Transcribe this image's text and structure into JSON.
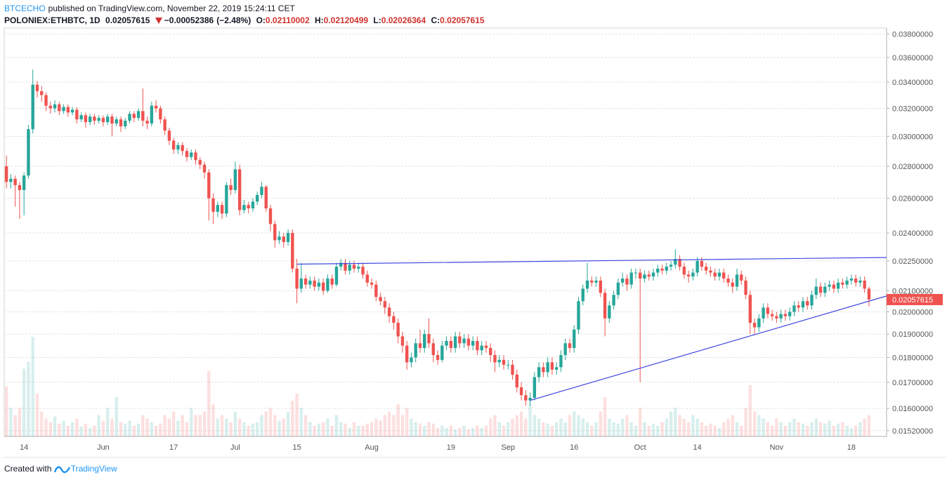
{
  "header": {
    "author": "BTCECHO",
    "published": "published on TradingView.com, November 22, 2019 15:24:11 CET",
    "symbol": "POLONIEX:ETHBTC, 1D",
    "change": {
      "value": -0.00052386,
      "label": "−0.00052386"
    },
    "change_percent": {
      "value": -2.48,
      "label": "(−2.48%)"
    },
    "ohlc_labels": [
      "O:",
      "H:",
      "L:",
      "C:"
    ]
  },
  "footer": {
    "created": "Created with",
    "brand": "TradingView"
  },
  "chart_data": {
    "type": "candlestick",
    "log": true,
    "grid": true,
    "up_color": "#26a69a",
    "down_color": "#ef5350",
    "line_color": "#3f48e0",
    "x": [
      "May 10",
      "May 11",
      "May 12",
      "May 13",
      "May 14",
      "May 15",
      "May 16",
      "May 17",
      "May 18",
      "May 19",
      "May 20",
      "May 21",
      "May 22",
      "May 23",
      "May 24",
      "May 25",
      "May 26",
      "May 27",
      "May 28",
      "May 29",
      "May 30",
      "May 31",
      "Jun 1",
      "Jun 2",
      "Jun 3",
      "Jun 4",
      "Jun 5",
      "Jun 6",
      "Jun 7",
      "Jun 8",
      "Jun 9",
      "Jun 10",
      "Jun 11",
      "Jun 12",
      "Jun 13",
      "Jun 14",
      "Jun 15",
      "Jun 16",
      "Jun 17",
      "Jun 18",
      "Jun 19",
      "Jun 20",
      "Jun 21",
      "Jun 22",
      "Jun 23",
      "Jun 24",
      "Jun 25",
      "Jun 26",
      "Jun 27",
      "Jun 28",
      "Jun 29",
      "Jun 30",
      "Jul 1",
      "Jul 2",
      "Jul 3",
      "Jul 4",
      "Jul 5",
      "Jul 6",
      "Jul 7",
      "Jul 8",
      "Jul 9",
      "Jul 10",
      "Jul 11",
      "Jul 12",
      "Jul 13",
      "Jul 14",
      "Jul 15",
      "Jul 16",
      "Jul 17",
      "Jul 18",
      "Jul 19",
      "Jul 20",
      "Jul 21",
      "Jul 22",
      "Jul 23",
      "Jul 24",
      "Jul 25",
      "Jul 26",
      "Jul 27",
      "Jul 28",
      "Jul 29",
      "Jul 30",
      "Jul 31",
      "Aug 1",
      "Aug 2",
      "Aug 3",
      "Aug 4",
      "Aug 5",
      "Aug 6",
      "Aug 7",
      "Aug 8",
      "Aug 9",
      "Aug 10",
      "Aug 11",
      "Aug 12",
      "Aug 13",
      "Aug 14",
      "Aug 15",
      "Aug 16",
      "Aug 17",
      "Aug 18",
      "Aug 19",
      "Aug 20",
      "Aug 21",
      "Aug 22",
      "Aug 23",
      "Aug 24",
      "Aug 25",
      "Aug 26",
      "Aug 27",
      "Aug 28",
      "Aug 29",
      "Aug 30",
      "Aug 31",
      "Sep 1",
      "Sep 2",
      "Sep 3",
      "Sep 4",
      "Sep 5",
      "Sep 6",
      "Sep 7",
      "Sep 8",
      "Sep 9",
      "Sep 10",
      "Sep 11",
      "Sep 12",
      "Sep 13",
      "Sep 14",
      "Sep 15",
      "Sep 16",
      "Sep 17",
      "Sep 18",
      "Sep 19",
      "Sep 20",
      "Sep 21",
      "Sep 22",
      "Sep 23",
      "Sep 24",
      "Sep 25",
      "Sep 26",
      "Sep 27",
      "Sep 28",
      "Sep 29",
      "Sep 30",
      "Oct 1",
      "Oct 2",
      "Oct 3",
      "Oct 4",
      "Oct 5",
      "Oct 6",
      "Oct 7",
      "Oct 8",
      "Oct 9",
      "Oct 10",
      "Oct 11",
      "Oct 12",
      "Oct 13",
      "Oct 14",
      "Oct 15",
      "Oct 16",
      "Oct 17",
      "Oct 18",
      "Oct 19",
      "Oct 20",
      "Oct 21",
      "Oct 22",
      "Oct 23",
      "Oct 24",
      "Oct 25",
      "Oct 26",
      "Oct 27",
      "Oct 28",
      "Oct 29",
      "Oct 30",
      "Oct 31",
      "Nov 1",
      "Nov 2",
      "Nov 3",
      "Nov 4",
      "Nov 5",
      "Nov 6",
      "Nov 7",
      "Nov 8",
      "Nov 9",
      "Nov 10",
      "Nov 11",
      "Nov 12",
      "Nov 13",
      "Nov 14",
      "Nov 15",
      "Nov 16",
      "Nov 17",
      "Nov 18",
      "Nov 19",
      "Nov 20",
      "Nov 21",
      "Nov 22"
    ],
    "open": [
      0.028,
      0.027,
      0.0272,
      0.0268,
      0.0265,
      0.0274,
      0.0305,
      0.0338,
      0.0333,
      0.033,
      0.0322,
      0.032,
      0.0323,
      0.0318,
      0.0321,
      0.0317,
      0.0319,
      0.0312,
      0.0315,
      0.031,
      0.0314,
      0.0311,
      0.0313,
      0.031,
      0.0314,
      0.0309,
      0.0312,
      0.0307,
      0.0311,
      0.0316,
      0.0313,
      0.0318,
      0.0311,
      0.0309,
      0.0322,
      0.032,
      0.0312,
      0.0304,
      0.0297,
      0.0291,
      0.0294,
      0.029,
      0.0286,
      0.0289,
      0.0284,
      0.0281,
      0.0276,
      0.026,
      0.0252,
      0.0256,
      0.0251,
      0.0268,
      0.0265,
      0.0278,
      0.0253,
      0.0256,
      0.0254,
      0.0258,
      0.0262,
      0.0267,
      0.0254,
      0.0245,
      0.0236,
      0.0238,
      0.0235,
      0.024,
      0.0221,
      0.0211,
      0.0216,
      0.0213,
      0.0215,
      0.0212,
      0.0214,
      0.021,
      0.0216,
      0.0213,
      0.0222,
      0.0224,
      0.022,
      0.0223,
      0.0221,
      0.0222,
      0.0218,
      0.0214,
      0.0213,
      0.0207,
      0.0205,
      0.0202,
      0.0198,
      0.0195,
      0.0189,
      0.0185,
      0.0178,
      0.018,
      0.0186,
      0.0184,
      0.019,
      0.0186,
      0.0181,
      0.0179,
      0.0185,
      0.0187,
      0.0184,
      0.0189,
      0.0186,
      0.0188,
      0.0185,
      0.0187,
      0.0183,
      0.0185,
      0.0184,
      0.0181,
      0.0178,
      0.0179,
      0.0177,
      0.0177,
      0.0173,
      0.0168,
      0.0165,
      0.0163,
      0.0164,
      0.0172,
      0.0176,
      0.0174,
      0.0178,
      0.0175,
      0.0176,
      0.0181,
      0.0186,
      0.0184,
      0.0192,
      0.0205,
      0.0211,
      0.0215,
      0.0214,
      0.0215,
      0.0209,
      0.0197,
      0.0203,
      0.0208,
      0.0214,
      0.0216,
      0.0213,
      0.0219,
      0.0219,
      0.0216,
      0.0218,
      0.0217,
      0.0219,
      0.0221,
      0.022,
      0.0222,
      0.0223,
      0.0226,
      0.0222,
      0.0218,
      0.0217,
      0.0219,
      0.0225,
      0.0222,
      0.022,
      0.0219,
      0.0217,
      0.0219,
      0.0216,
      0.0214,
      0.0212,
      0.0218,
      0.0215,
      0.0208,
      0.0195,
      0.0193,
      0.0197,
      0.0202,
      0.0199,
      0.0198,
      0.0197,
      0.0199,
      0.0198,
      0.02,
      0.0203,
      0.0202,
      0.0205,
      0.0203,
      0.0208,
      0.0212,
      0.0209,
      0.0212,
      0.0213,
      0.0211,
      0.0214,
      0.0213,
      0.0215,
      0.0216,
      0.0214,
      0.0215,
      0.02110002
    ],
    "high": [
      0.0287,
      0.0275,
      0.0274,
      0.027,
      0.0276,
      0.0308,
      0.035,
      0.0341,
      0.0337,
      0.0332,
      0.0325,
      0.0326,
      0.0325,
      0.0323,
      0.0323,
      0.0321,
      0.0321,
      0.0317,
      0.0317,
      0.0316,
      0.0316,
      0.0315,
      0.0315,
      0.0316,
      0.0316,
      0.0314,
      0.0314,
      0.0313,
      0.0318,
      0.0318,
      0.032,
      0.0335,
      0.0314,
      0.0325,
      0.0326,
      0.0322,
      0.0314,
      0.0306,
      0.0299,
      0.0296,
      0.0296,
      0.0292,
      0.0291,
      0.0291,
      0.0286,
      0.0283,
      0.0278,
      0.0263,
      0.0258,
      0.0258,
      0.027,
      0.0272,
      0.0283,
      0.0281,
      0.0259,
      0.0258,
      0.026,
      0.0264,
      0.027,
      0.0268,
      0.0256,
      0.0247,
      0.0241,
      0.024,
      0.0242,
      0.0242,
      0.0226,
      0.0224,
      0.0218,
      0.0217,
      0.0217,
      0.0216,
      0.0216,
      0.0218,
      0.0218,
      0.0224,
      0.0226,
      0.0226,
      0.0225,
      0.0225,
      0.0224,
      0.0224,
      0.022,
      0.0216,
      0.0215,
      0.0209,
      0.0207,
      0.0204,
      0.02,
      0.0197,
      0.0191,
      0.0187,
      0.0182,
      0.0188,
      0.0192,
      0.0192,
      0.0197,
      0.0188,
      0.0183,
      0.0187,
      0.0189,
      0.0189,
      0.0191,
      0.0191,
      0.019,
      0.019,
      0.0189,
      0.0189,
      0.0187,
      0.0187,
      0.0186,
      0.0183,
      0.0181,
      0.0181,
      0.0179,
      0.0179,
      0.0175,
      0.017,
      0.0167,
      0.0166,
      0.0174,
      0.0178,
      0.0178,
      0.018,
      0.018,
      0.0178,
      0.0183,
      0.0188,
      0.0188,
      0.0194,
      0.0207,
      0.0213,
      0.0224,
      0.0217,
      0.0217,
      0.0217,
      0.0211,
      0.0205,
      0.021,
      0.0216,
      0.0219,
      0.0218,
      0.0221,
      0.0221,
      0.0221,
      0.022,
      0.022,
      0.0221,
      0.0223,
      0.0223,
      0.0224,
      0.0225,
      0.0231,
      0.0228,
      0.0224,
      0.022,
      0.0221,
      0.0227,
      0.0227,
      0.0224,
      0.0222,
      0.0221,
      0.0221,
      0.0221,
      0.0218,
      0.0216,
      0.0221,
      0.022,
      0.0217,
      0.021,
      0.0197,
      0.0199,
      0.0204,
      0.0204,
      0.0201,
      0.02,
      0.0201,
      0.0201,
      0.0202,
      0.0205,
      0.0205,
      0.0207,
      0.0207,
      0.021,
      0.0216,
      0.0214,
      0.0214,
      0.0215,
      0.0215,
      0.0216,
      0.0216,
      0.0217,
      0.0218,
      0.0218,
      0.0217,
      0.0217,
      0.02120499
    ],
    "low": [
      0.0266,
      0.0266,
      0.0255,
      0.0248,
      0.025,
      0.0272,
      0.0302,
      0.0328,
      0.0325,
      0.0318,
      0.0316,
      0.0317,
      0.0315,
      0.0316,
      0.0314,
      0.0315,
      0.0309,
      0.031,
      0.0306,
      0.0308,
      0.0308,
      0.0309,
      0.0307,
      0.0308,
      0.03,
      0.0307,
      0.0303,
      0.0305,
      0.0309,
      0.031,
      0.0311,
      0.0307,
      0.0305,
      0.0307,
      0.0317,
      0.0309,
      0.0301,
      0.0294,
      0.0288,
      0.0288,
      0.0287,
      0.0283,
      0.0284,
      0.0281,
      0.0278,
      0.0272,
      0.0247,
      0.0245,
      0.0249,
      0.0248,
      0.0249,
      0.0262,
      0.0263,
      0.025,
      0.0251,
      0.0251,
      0.0252,
      0.0256,
      0.026,
      0.0252,
      0.0241,
      0.0232,
      0.0234,
      0.0232,
      0.0233,
      0.0219,
      0.0204,
      0.0209,
      0.0211,
      0.0211,
      0.021,
      0.021,
      0.0208,
      0.0209,
      0.0211,
      0.0212,
      0.022,
      0.0218,
      0.0218,
      0.0219,
      0.0219,
      0.0216,
      0.0212,
      0.0211,
      0.0205,
      0.0203,
      0.0199,
      0.0195,
      0.0192,
      0.0186,
      0.0182,
      0.0175,
      0.0176,
      0.0178,
      0.0182,
      0.0182,
      0.0184,
      0.0178,
      0.0177,
      0.0178,
      0.0183,
      0.0182,
      0.0182,
      0.0184,
      0.0184,
      0.0183,
      0.0183,
      0.0181,
      0.0181,
      0.0182,
      0.0178,
      0.0174,
      0.0176,
      0.0175,
      0.0175,
      0.0171,
      0.0166,
      0.0163,
      0.0161,
      0.0161,
      0.0163,
      0.017,
      0.0172,
      0.0172,
      0.0173,
      0.0173,
      0.0174,
      0.0179,
      0.0182,
      0.0182,
      0.019,
      0.0203,
      0.0209,
      0.0212,
      0.0212,
      0.0207,
      0.0189,
      0.0195,
      0.0201,
      0.0206,
      0.0212,
      0.021,
      0.0211,
      0.0216,
      0.017,
      0.0214,
      0.0215,
      0.0215,
      0.0217,
      0.0218,
      0.0218,
      0.022,
      0.0221,
      0.022,
      0.0216,
      0.0214,
      0.0215,
      0.0217,
      0.022,
      0.0218,
      0.0217,
      0.0215,
      0.0215,
      0.0214,
      0.0212,
      0.0209,
      0.021,
      0.0213,
      0.0206,
      0.019,
      0.019,
      0.0191,
      0.0195,
      0.0197,
      0.0196,
      0.0195,
      0.0195,
      0.0196,
      0.0196,
      0.0198,
      0.02,
      0.02,
      0.0201,
      0.0201,
      0.0206,
      0.0207,
      0.0207,
      0.021,
      0.0209,
      0.0209,
      0.0211,
      0.0211,
      0.0213,
      0.0212,
      0.0212,
      0.0209,
      0.02026364
    ],
    "close": [
      0.027,
      0.0272,
      0.0268,
      0.0265,
      0.0274,
      0.0305,
      0.0338,
      0.0333,
      0.033,
      0.0322,
      0.032,
      0.0323,
      0.0318,
      0.0321,
      0.0317,
      0.0319,
      0.0312,
      0.0315,
      0.031,
      0.0314,
      0.0311,
      0.0313,
      0.031,
      0.0314,
      0.0309,
      0.0312,
      0.0307,
      0.0311,
      0.0316,
      0.0313,
      0.0318,
      0.0311,
      0.0309,
      0.0322,
      0.032,
      0.0312,
      0.0304,
      0.0297,
      0.0291,
      0.0294,
      0.029,
      0.0286,
      0.0289,
      0.0284,
      0.0281,
      0.0276,
      0.026,
      0.0252,
      0.0256,
      0.0251,
      0.0268,
      0.0265,
      0.0278,
      0.0253,
      0.0256,
      0.0254,
      0.0258,
      0.0262,
      0.0267,
      0.0254,
      0.0245,
      0.0236,
      0.0238,
      0.0235,
      0.024,
      0.0221,
      0.0211,
      0.0216,
      0.0213,
      0.0215,
      0.0212,
      0.0214,
      0.021,
      0.0216,
      0.0213,
      0.0222,
      0.0224,
      0.022,
      0.0223,
      0.0221,
      0.0222,
      0.0218,
      0.0214,
      0.0213,
      0.0207,
      0.0205,
      0.0202,
      0.0198,
      0.0195,
      0.0189,
      0.0185,
      0.0178,
      0.018,
      0.0186,
      0.0184,
      0.019,
      0.0186,
      0.0181,
      0.0179,
      0.0185,
      0.0187,
      0.0184,
      0.0189,
      0.0186,
      0.0188,
      0.0185,
      0.0187,
      0.0183,
      0.0185,
      0.0184,
      0.0181,
      0.0178,
      0.0179,
      0.0177,
      0.0177,
      0.0173,
      0.0168,
      0.0165,
      0.0163,
      0.0164,
      0.0172,
      0.0176,
      0.0174,
      0.0178,
      0.0175,
      0.0176,
      0.0181,
      0.0186,
      0.0184,
      0.0192,
      0.0205,
      0.0211,
      0.0215,
      0.0214,
      0.0215,
      0.0209,
      0.0197,
      0.0203,
      0.0208,
      0.0214,
      0.0216,
      0.0213,
      0.0219,
      0.0219,
      0.0216,
      0.0218,
      0.0217,
      0.0219,
      0.0221,
      0.022,
      0.0222,
      0.0223,
      0.0226,
      0.0222,
      0.0218,
      0.0217,
      0.0219,
      0.0225,
      0.0222,
      0.022,
      0.0219,
      0.0217,
      0.0219,
      0.0216,
      0.0214,
      0.0212,
      0.0218,
      0.0215,
      0.0208,
      0.0195,
      0.0193,
      0.0197,
      0.0202,
      0.0199,
      0.0198,
      0.0197,
      0.0199,
      0.0198,
      0.02,
      0.0203,
      0.0202,
      0.0205,
      0.0203,
      0.0208,
      0.0212,
      0.0209,
      0.0212,
      0.0213,
      0.0211,
      0.0214,
      0.0213,
      0.0215,
      0.0216,
      0.0214,
      0.0215,
      0.0211,
      0.02057615
    ],
    "volume": [
      70,
      40,
      30,
      40,
      95,
      105,
      140,
      60,
      35,
      25,
      20,
      28,
      18,
      22,
      15,
      20,
      25,
      14,
      18,
      12,
      15,
      30,
      22,
      40,
      25,
      55,
      20,
      18,
      22,
      15,
      18,
      30,
      25,
      20,
      15,
      18,
      30,
      25,
      35,
      22,
      30,
      20,
      40,
      30,
      30,
      35,
      92,
      45,
      25,
      30,
      25,
      20,
      35,
      25,
      20,
      15,
      18,
      20,
      30,
      35,
      40,
      30,
      22,
      25,
      35,
      50,
      60,
      40,
      30,
      20,
      15,
      18,
      20,
      25,
      15,
      30,
      20,
      18,
      12,
      20,
      15,
      15,
      18,
      20,
      25,
      22,
      30,
      35,
      30,
      45,
      30,
      40,
      25,
      20,
      18,
      15,
      20,
      18,
      12,
      15,
      12,
      15,
      10,
      12,
      15,
      10,
      12,
      15,
      12,
      15,
      25,
      30,
      20,
      15,
      20,
      25,
      30,
      35,
      25,
      45,
      30,
      25,
      20,
      18,
      15,
      20,
      25,
      20,
      30,
      35,
      30,
      25,
      20,
      15,
      20,
      35,
      55,
      25,
      20,
      18,
      25,
      30,
      20,
      15,
      40,
      20,
      15,
      18,
      15,
      20,
      25,
      35,
      40,
      30,
      25,
      20,
      30,
      25,
      20,
      15,
      18,
      15,
      12,
      20,
      25,
      30,
      20,
      15,
      40,
      72,
      35,
      30,
      25,
      20,
      15,
      25,
      20,
      15,
      20,
      25,
      20,
      18,
      15,
      20,
      25,
      20,
      18,
      22,
      15,
      18,
      20,
      15,
      12,
      15,
      20,
      25,
      30
    ],
    "trendlines": [
      {
        "x": [
          "Jul 15",
          "Oct 8"
        ],
        "y": [
          0.02233,
          0.02255
        ]
      },
      {
        "x": [
          "Sep 6",
          "Oct 1"
        ],
        "y": [
          0.0163,
          0.01756
        ]
      }
    ],
    "ylim": [
      0.015,
      0.0384
    ],
    "yticks": [
      {
        "value": 0.0152,
        "label": "0.01520000"
      },
      {
        "value": 0.016,
        "label": "0.01600000"
      },
      {
        "value": 0.017,
        "label": "0.01700000"
      },
      {
        "value": 0.018,
        "label": "0.01800000"
      },
      {
        "value": 0.019,
        "label": "0.01900000"
      },
      {
        "value": 0.02,
        "label": "0.02000000"
      },
      {
        "value": 0.021,
        "label": "0.02100000"
      },
      {
        "value": 0.0225,
        "label": "0.02250000"
      },
      {
        "value": 0.024,
        "label": "0.02400000"
      },
      {
        "value": 0.026,
        "label": "0.02600000"
      },
      {
        "value": 0.028,
        "label": "0.02800000"
      },
      {
        "value": 0.03,
        "label": "0.03000000"
      },
      {
        "value": 0.032,
        "label": "0.03200000"
      },
      {
        "value": 0.034,
        "label": "0.03400000"
      },
      {
        "value": 0.036,
        "label": "0.03600000"
      },
      {
        "value": 0.038,
        "label": "0.03800000"
      }
    ],
    "xticks": [
      {
        "value": "May 14",
        "label": "14"
      },
      {
        "value": "Jun 1",
        "label": "Jun"
      },
      {
        "value": "Jun 17",
        "label": "17"
      },
      {
        "value": "Jul 1",
        "label": "Jul"
      },
      {
        "value": "Jul 15",
        "label": "15"
      },
      {
        "value": "Aug 1",
        "label": "Aug"
      },
      {
        "value": "Aug 19",
        "label": "19"
      },
      {
        "value": "Sep 1",
        "label": "Sep"
      },
      {
        "value": "Sep 16",
        "label": "16"
      },
      {
        "value": "Oct 1",
        "label": "Oct"
      },
      {
        "value": "Oct 14",
        "label": "14"
      },
      {
        "value": "Nov 1",
        "label": "Nov"
      },
      {
        "value": "Nov 18",
        "label": "18"
      }
    ]
  }
}
